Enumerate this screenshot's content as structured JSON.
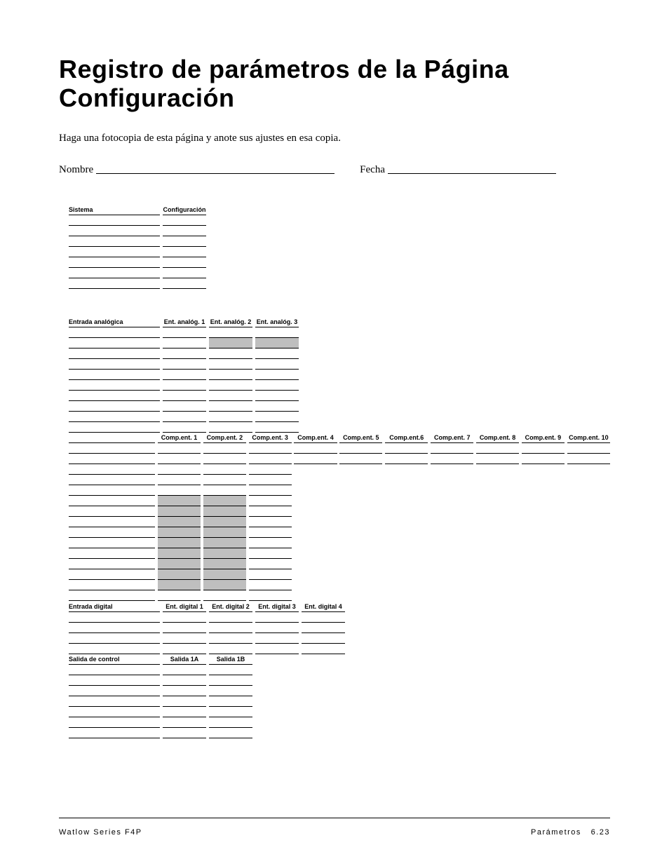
{
  "title": "Registro de parámetros de la Página Configuración",
  "instruction": "Haga una fotocopia de esta página y anote sus ajustes en esa copia.",
  "fields": {
    "name_label": "Nombre",
    "date_label": "Fecha"
  },
  "sections": {
    "sistema": {
      "row_label": "Sistema",
      "cols": [
        "Configuración"
      ],
      "rows": 7,
      "shaded": []
    },
    "entrada_analogica": {
      "row_label": "Entrada analógica",
      "cols": [
        "Ent. analóg. 1",
        "Ent. analóg. 2",
        "Ent. analóg. 3"
      ],
      "rows": 10,
      "shaded": [
        [
          1,
          1
        ],
        [
          1,
          2
        ]
      ]
    },
    "comp_ent": {
      "row_label": "",
      "cols": [
        "Comp.ent. 1",
        "Comp.ent. 2",
        "Comp.ent. 3",
        "Comp.ent. 4",
        "Comp.ent. 5",
        "Comp.ent.6",
        "Comp.ent. 7",
        "Comp.ent. 8",
        "Comp.ent. 9",
        "Comp.ent. 10"
      ],
      "full_rows_all": 2,
      "full_rows_left3": 13,
      "shaded_block": {
        "from_row": 5,
        "to_row": 13,
        "cols": [
          0,
          1
        ]
      }
    },
    "entrada_digital": {
      "row_label": "Entrada digital",
      "cols": [
        "Ent. digital 1",
        "Ent. digital 2",
        "Ent. digital 3",
        "Ent. digital 4"
      ],
      "rows": 4,
      "shaded": []
    },
    "salida_control": {
      "row_label": "Salida de control",
      "cols": [
        "Salida 1A",
        "Salida 1B"
      ],
      "rows": 7,
      "shaded": []
    }
  },
  "footer": {
    "left": "Watlow Series F4P",
    "right_label": "Parámetros",
    "right_page": "6.23"
  },
  "colors": {
    "shade": "#bfbfbf",
    "line": "#000000",
    "bg": "#ffffff"
  }
}
